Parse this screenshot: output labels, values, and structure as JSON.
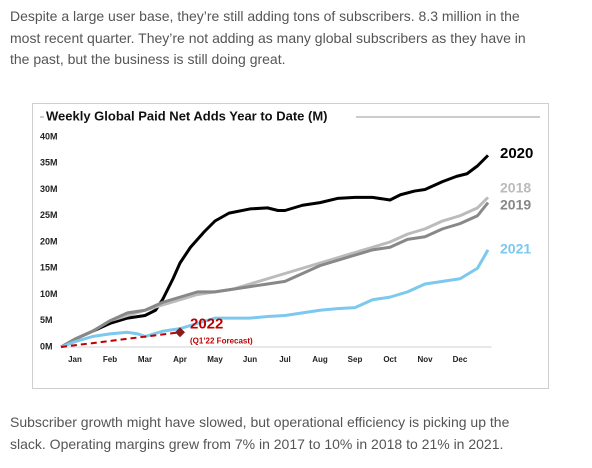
{
  "paragraphs": [
    [
      "Despite a large user base, they’re still adding tons of subscribers. 8.3 million in the",
      "most recent quarter. They’re not adding as many global subscribers as they have in",
      "the past, but the business is still doing great."
    ],
    [
      "Subscriber growth might have slowed, but operational efficiency is picking up the",
      "slack. Operating margins grew from 7% in 2017 to 10% in 2018 to 21% in 2021."
    ]
  ],
  "chart_data": {
    "type": "line",
    "title": "Weekly Global Paid Net Adds Year to Date (M)",
    "xlim": [
      -0.4,
      11.9
    ],
    "xticks": [
      {
        "value": 0,
        "label": "Jan"
      },
      {
        "value": 1,
        "label": "Feb"
      },
      {
        "value": 2,
        "label": "Mar"
      },
      {
        "value": 3,
        "label": "Apr"
      },
      {
        "value": 4,
        "label": "May"
      },
      {
        "value": 5,
        "label": "Jun"
      },
      {
        "value": 6,
        "label": "Jul"
      },
      {
        "value": 7,
        "label": "Aug"
      },
      {
        "value": 8,
        "label": "Sep"
      },
      {
        "value": 9,
        "label": "Oct"
      },
      {
        "value": 10,
        "label": "Nov"
      },
      {
        "value": 11,
        "label": "Dec"
      }
    ],
    "ylim": [
      0,
      40
    ],
    "yticks": [
      {
        "value": 0,
        "label": "0M"
      },
      {
        "value": 5,
        "label": "5M"
      },
      {
        "value": 10,
        "label": "10M"
      },
      {
        "value": 15,
        "label": "15M"
      },
      {
        "value": 20,
        "label": "20M"
      },
      {
        "value": 25,
        "label": "25M"
      },
      {
        "value": 30,
        "label": "30M"
      },
      {
        "value": 35,
        "label": "35M"
      },
      {
        "value": 40,
        "label": "40M"
      }
    ],
    "series": [
      {
        "name": "2020",
        "color": "#000000",
        "x": [
          -0.4,
          0,
          0.5,
          1,
          1.5,
          2,
          2.3,
          2.5,
          2.8,
          3,
          3.3,
          3.7,
          4,
          4.4,
          5,
          5.5,
          5.8,
          6,
          6.5,
          7,
          7.5,
          8,
          8.5,
          9,
          9.3,
          9.7,
          10,
          10.5,
          10.9,
          11.2,
          11.5,
          11.8
        ],
        "values": [
          0,
          1.5,
          3,
          4.5,
          5.5,
          6,
          7,
          9,
          13,
          16,
          19,
          22,
          24,
          25.5,
          26.3,
          26.5,
          26,
          26,
          27,
          27.5,
          28.3,
          28.5,
          28.5,
          28,
          29,
          29.7,
          30,
          31.5,
          32.5,
          33,
          34.5,
          36.5
        ]
      },
      {
        "name": "2018",
        "color": "#bbbbbb",
        "x": [
          -0.4,
          0,
          0.5,
          1,
          1.5,
          2,
          2.5,
          3,
          3.5,
          4,
          4.5,
          5,
          5.5,
          6,
          6.5,
          7,
          7.5,
          8,
          8.5,
          9,
          9.5,
          10,
          10.5,
          11,
          11.5,
          11.8
        ],
        "values": [
          0,
          1.5,
          3,
          5,
          6,
          7,
          8,
          9,
          10,
          10.5,
          11,
          12,
          13,
          14,
          15,
          16,
          17,
          18,
          19,
          20,
          21.5,
          22.5,
          24,
          25,
          26.5,
          28.5
        ]
      },
      {
        "name": "2019",
        "color": "#888888",
        "x": [
          -0.4,
          0,
          0.5,
          1,
          1.5,
          2,
          2.5,
          3,
          3.5,
          4,
          4.5,
          5,
          5.5,
          6,
          6.5,
          7,
          7.5,
          8,
          8.5,
          9,
          9.5,
          10,
          10.5,
          11,
          11.5,
          11.8
        ],
        "values": [
          0,
          1.5,
          3,
          5,
          6.5,
          7,
          8.5,
          9.5,
          10.5,
          10.5,
          11,
          11.5,
          12,
          12.5,
          14,
          15.5,
          16.5,
          17.5,
          18.5,
          19,
          20.5,
          21,
          22.5,
          23.5,
          25,
          27.5
        ]
      },
      {
        "name": "2021",
        "color": "#7cc8ee",
        "x": [
          -0.4,
          0,
          0.5,
          1,
          1.5,
          1.8,
          2,
          2.5,
          3,
          3.5,
          4,
          4.5,
          5,
          5.5,
          6,
          6.5,
          7,
          7.5,
          8,
          8.5,
          9,
          9.5,
          10,
          10.5,
          11,
          11.5,
          11.8
        ],
        "values": [
          0,
          1,
          2,
          2.5,
          2.8,
          2.5,
          2,
          3,
          3.5,
          4.5,
          5.5,
          5.5,
          5.5,
          5.8,
          6,
          6.5,
          7,
          7.3,
          7.5,
          9,
          9.5,
          10.5,
          12,
          12.5,
          13,
          15,
          18.5
        ]
      },
      {
        "name": "2022",
        "color": "#c00000",
        "style": "dashed",
        "annotation": "(Q1’22 Forecast)",
        "x": [
          -0.4,
          3
        ],
        "values": [
          0,
          2.8
        ]
      }
    ]
  }
}
